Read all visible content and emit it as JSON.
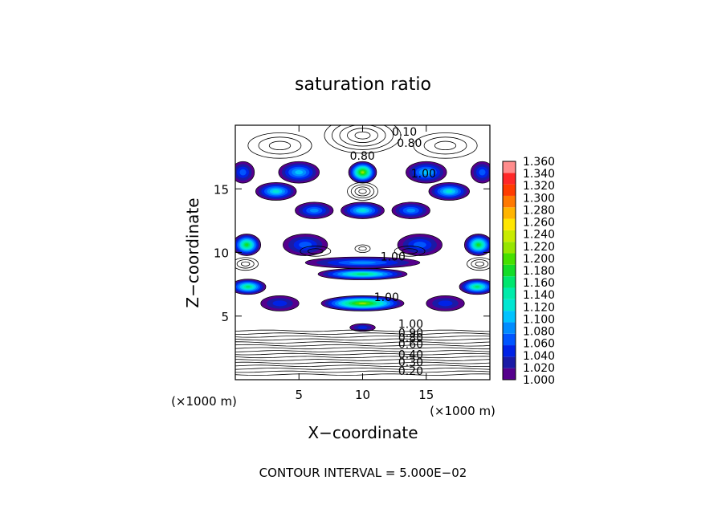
{
  "chart_data": {
    "type": "heatmap",
    "title": "saturation ratio",
    "xlabel": "X−coordinate",
    "ylabel": "Z−coordinate",
    "x_unit_left": "(×1000 m)",
    "x_unit_right": "(×1000 m)",
    "footer": "CONTOUR INTERVAL = 5.000E−02",
    "xlim": [
      0,
      20
    ],
    "ylim": [
      0,
      20
    ],
    "x_ticks": [
      5,
      10,
      15
    ],
    "y_ticks": [
      5,
      10,
      15
    ],
    "colorbar": {
      "min": 1.0,
      "max": 1.36,
      "step": 0.02,
      "labels": [
        "1.000",
        "1.020",
        "1.040",
        "1.060",
        "1.080",
        "1.100",
        "1.120",
        "1.140",
        "1.160",
        "1.180",
        "1.200",
        "1.220",
        "1.240",
        "1.260",
        "1.280",
        "1.300",
        "1.320",
        "1.340",
        "1.360"
      ],
      "colors": [
        "#55008c",
        "#1a1aa6",
        "#0022e6",
        "#0055ff",
        "#008cff",
        "#00c3ff",
        "#00e6d2",
        "#00ebaa",
        "#00e66e",
        "#14dc28",
        "#46e000",
        "#96e600",
        "#c8eb00",
        "#ffe600",
        "#ffb400",
        "#ff7800",
        "#ff3c00",
        "#ff2828",
        "#ff8c8c"
      ]
    },
    "contour_labels": [
      {
        "text": "0.10",
        "x": 12.3,
        "z": 19.5
      },
      {
        "text": "0.80",
        "x": 9.0,
        "z": 17.6
      },
      {
        "text": "0.80",
        "x": 12.7,
        "z": 18.6
      },
      {
        "text": "1.00",
        "x": 13.8,
        "z": 16.2
      },
      {
        "text": "1.00",
        "x": 11.4,
        "z": 9.7
      },
      {
        "text": "1.00",
        "x": 10.9,
        "z": 6.5
      },
      {
        "text": "1.00",
        "x": 12.8,
        "z": 4.4
      },
      {
        "text": "0.90",
        "x": 12.8,
        "z": 3.7
      },
      {
        "text": "0.80",
        "x": 12.8,
        "z": 3.3
      },
      {
        "text": "0.60",
        "x": 12.8,
        "z": 2.8
      },
      {
        "text": "0.40",
        "x": 12.8,
        "z": 2.0
      },
      {
        "text": "0.30",
        "x": 12.8,
        "z": 1.4
      },
      {
        "text": "0.20",
        "x": 12.8,
        "z": 0.7
      }
    ],
    "bands": [
      {
        "z": 16.3,
        "hz": 1.7,
        "blobs": [
          {
            "x": 0.6,
            "w": 1.8,
            "v": 1.05
          },
          {
            "x": 5.0,
            "w": 3.2,
            "v": 1.09
          },
          {
            "x": 10.0,
            "w": 2.2,
            "v": 1.22
          },
          {
            "x": 15.0,
            "w": 3.2,
            "v": 1.09
          },
          {
            "x": 19.4,
            "w": 1.8,
            "v": 1.05
          }
        ]
      },
      {
        "z": 14.8,
        "hz": 1.4,
        "blobs": [
          {
            "x": 3.2,
            "w": 3.2,
            "v": 1.11
          },
          {
            "x": 16.8,
            "w": 3.2,
            "v": 1.11
          }
        ]
      },
      {
        "z": 13.3,
        "hz": 1.3,
        "blobs": [
          {
            "x": 6.2,
            "w": 3.0,
            "v": 1.08
          },
          {
            "x": 10.0,
            "w": 3.4,
            "v": 1.13
          },
          {
            "x": 13.8,
            "w": 3.0,
            "v": 1.08
          }
        ]
      },
      {
        "z": 10.6,
        "hz": 1.7,
        "blobs": [
          {
            "x": 0.9,
            "w": 2.2,
            "v": 1.19
          },
          {
            "x": 5.5,
            "w": 3.5,
            "v": 1.06
          },
          {
            "x": 14.5,
            "w": 3.5,
            "v": 1.06
          },
          {
            "x": 19.1,
            "w": 2.2,
            "v": 1.19
          }
        ]
      },
      {
        "z": 9.2,
        "hz": 0.9,
        "blobs": [
          {
            "x": 10.0,
            "w": 9.0,
            "v": 1.07
          }
        ]
      },
      {
        "z": 8.3,
        "hz": 0.9,
        "blobs": [
          {
            "x": 10.0,
            "w": 7.0,
            "v": 1.17
          }
        ]
      },
      {
        "z": 7.3,
        "hz": 1.2,
        "blobs": [
          {
            "x": 1.0,
            "w": 2.8,
            "v": 1.17
          },
          {
            "x": 19.0,
            "w": 2.8,
            "v": 1.17
          }
        ]
      },
      {
        "z": 6.0,
        "hz": 1.2,
        "blobs": [
          {
            "x": 10.0,
            "w": 6.5,
            "v": 1.22
          },
          {
            "x": 3.5,
            "w": 3.0,
            "v": 1.03
          },
          {
            "x": 16.5,
            "w": 3.0,
            "v": 1.03
          }
        ]
      },
      {
        "z": 4.1,
        "hz": 0.6,
        "blobs": [
          {
            "x": 10.0,
            "w": 2.0,
            "v": 1.04
          }
        ]
      }
    ]
  }
}
